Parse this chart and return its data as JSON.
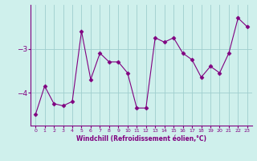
{
  "x": [
    0,
    1,
    2,
    3,
    4,
    5,
    6,
    7,
    8,
    9,
    10,
    11,
    12,
    13,
    14,
    15,
    16,
    17,
    18,
    19,
    20,
    21,
    22,
    23
  ],
  "y": [
    -4.5,
    -3.85,
    -4.25,
    -4.3,
    -4.2,
    -2.6,
    -3.7,
    -3.1,
    -3.3,
    -3.3,
    -3.55,
    -4.35,
    -4.35,
    -2.75,
    -2.85,
    -2.75,
    -3.1,
    -3.25,
    -3.65,
    -3.4,
    -3.55,
    -3.1,
    -2.3,
    -2.5
  ],
  "line_color": "#800080",
  "marker": "D",
  "marker_size": 2.5,
  "bg_color": "#cff0ec",
  "grid_color": "#9ecece",
  "xlabel": "Windchill (Refroidissement éolien,°C)",
  "xlabel_color": "#800080",
  "tick_color": "#800080",
  "yticks": [
    -4,
    -3
  ],
  "ylim": [
    -4.75,
    -2.0
  ],
  "xlim": [
    -0.5,
    23.5
  ],
  "xtick_fontsize": 4.5,
  "ytick_fontsize": 6.5,
  "xlabel_fontsize": 5.5
}
